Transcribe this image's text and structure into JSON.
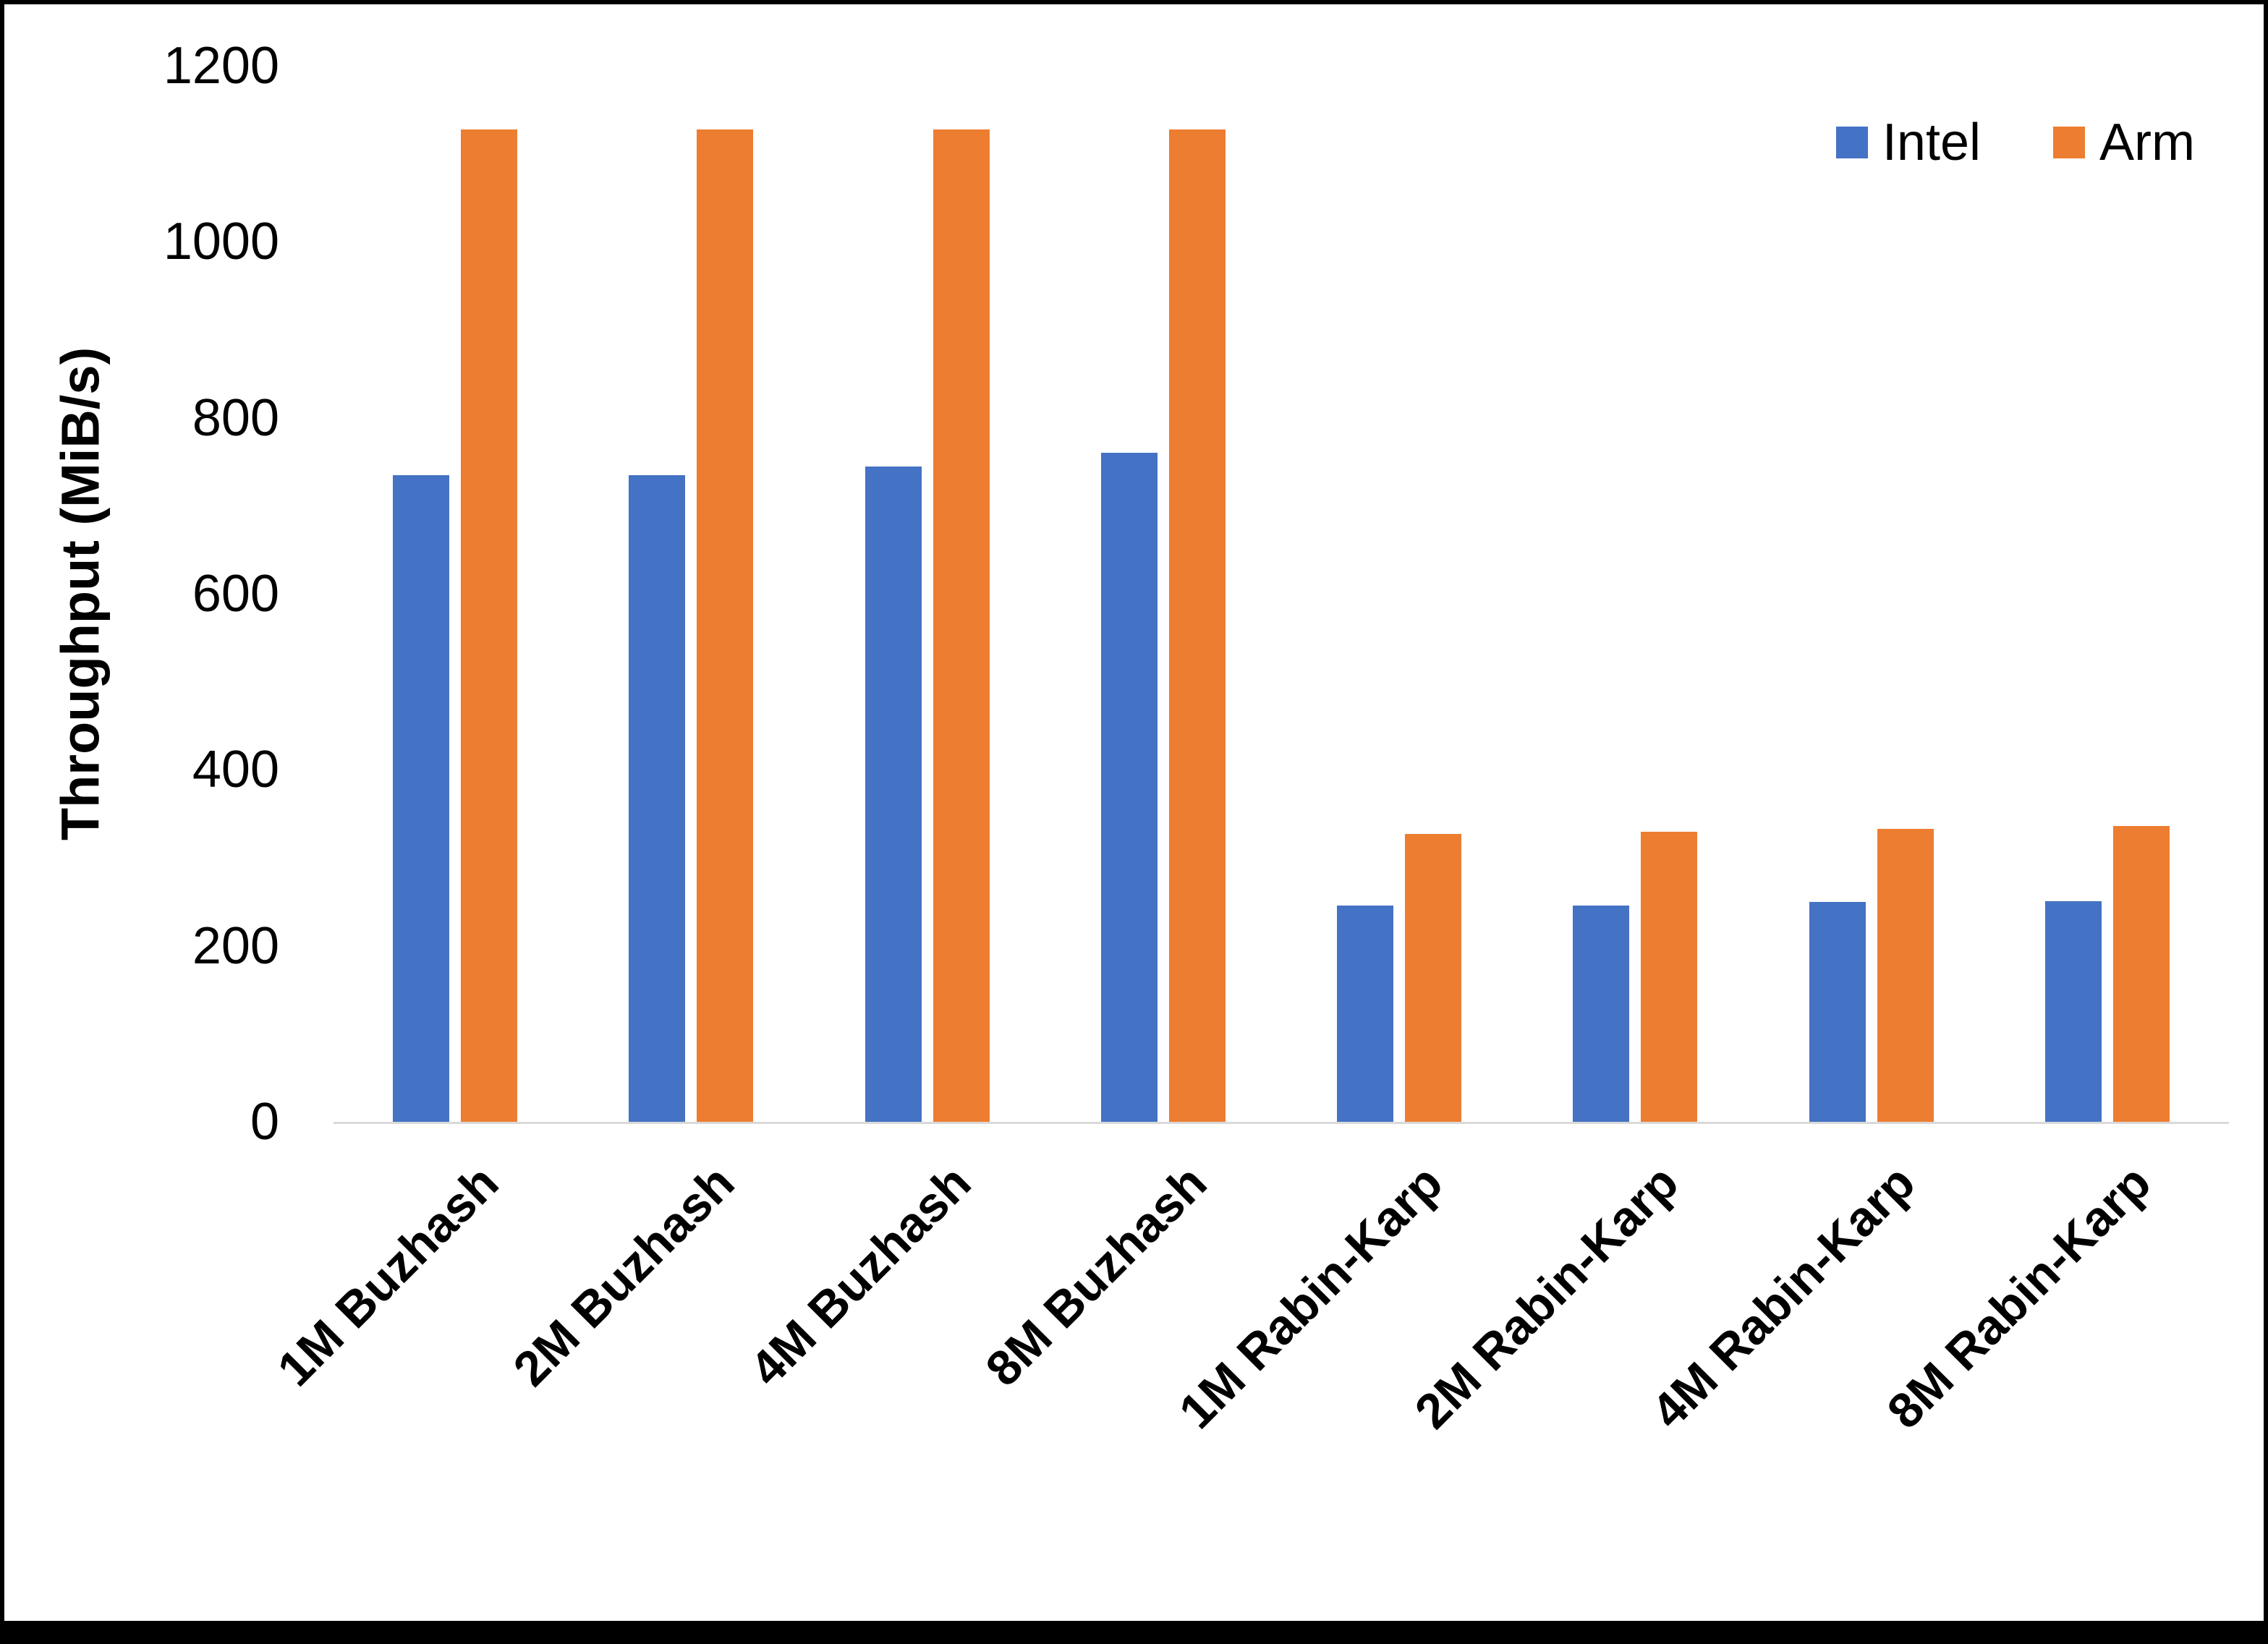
{
  "chart_data": {
    "type": "bar",
    "title": "",
    "xlabel": "",
    "ylabel": "Throughput (MiB/s)",
    "ylim": [
      0,
      1200
    ],
    "y_ticks": [
      0,
      200,
      400,
      600,
      800,
      1000,
      1200
    ],
    "grid": false,
    "legend_position": "top-right",
    "categories": [
      "1M Buzhash",
      "2M Buzhash",
      "4M Buzhash",
      "8M Buzhash",
      "1M Rabin-Karp",
      "2M Rabin-Karp",
      "4M Rabin-Karp",
      "8M Rabin-Karp"
    ],
    "series": [
      {
        "name": "Intel",
        "color": "#4472C4",
        "values": [
          735,
          735,
          745,
          760,
          246,
          246,
          250,
          251
        ]
      },
      {
        "name": "Arm",
        "color": "#ED7D31",
        "values": [
          1128,
          1128,
          1128,
          1128,
          327,
          330,
          333,
          336
        ]
      }
    ]
  },
  "colors": {
    "axis_line": "#d9d9d9",
    "text": "#000000",
    "background": "#ffffff",
    "frame": "#000000"
  }
}
